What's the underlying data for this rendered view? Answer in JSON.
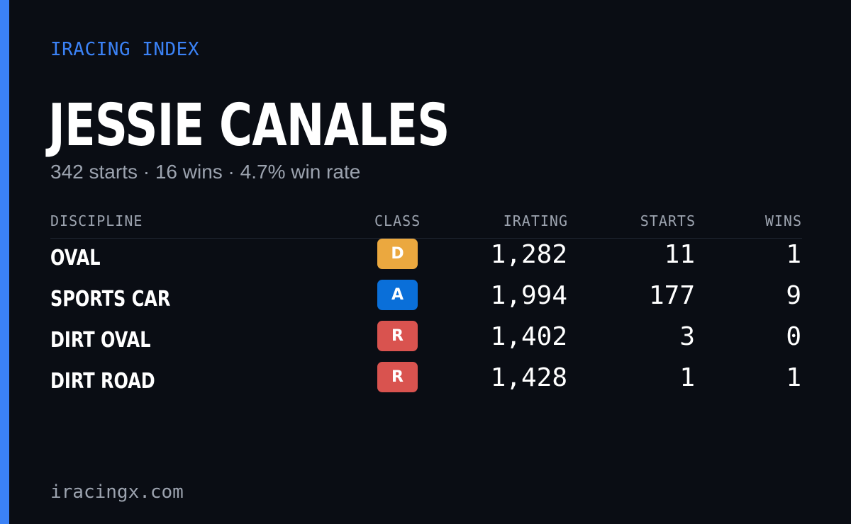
{
  "brand": "IRACING INDEX",
  "driver": {
    "name": "JESSIE CANALES",
    "summary": "342 starts · 16 wins · 4.7% win rate"
  },
  "table": {
    "headers": {
      "discipline": "DISCIPLINE",
      "class": "CLASS",
      "irating": "IRATING",
      "starts": "STARTS",
      "wins": "WINS"
    },
    "rows": [
      {
        "discipline": "OVAL",
        "class": "D",
        "class_color": "#eba83f",
        "irating": "1,282",
        "starts": "11",
        "wins": "1"
      },
      {
        "discipline": "SPORTS CAR",
        "class": "A",
        "class_color": "#0a6fd9",
        "irating": "1,994",
        "starts": "177",
        "wins": "9"
      },
      {
        "discipline": "DIRT OVAL",
        "class": "R",
        "class_color": "#d9534f",
        "irating": "1,402",
        "starts": "3",
        "wins": "0"
      },
      {
        "discipline": "DIRT ROAD",
        "class": "R",
        "class_color": "#d9534f",
        "irating": "1,428",
        "starts": "1",
        "wins": "1"
      }
    ]
  },
  "footer": "iracingx.com",
  "colors": {
    "accent": "#3b82f6",
    "background": "#0a0d14",
    "muted_text": "#9ca3af"
  }
}
